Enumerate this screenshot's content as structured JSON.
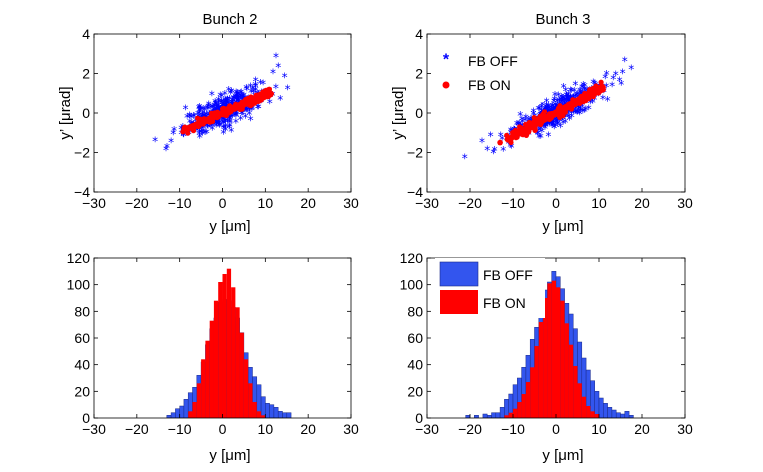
{
  "figure": {
    "x_tick_values": [
      -30,
      -20,
      -10,
      0,
      10,
      20,
      30
    ]
  },
  "chart_data": [
    {
      "type": "scatter",
      "title": "Bunch 2",
      "xlabel": "y [μm]",
      "ylabel": "y’ [μrad]",
      "xlim": [
        -30,
        30
      ],
      "ylim": [
        -4,
        4
      ],
      "xticks": [
        "−30",
        "−20",
        "−10",
        "0",
        "10",
        "20",
        "30"
      ],
      "yticks": [
        "−4",
        "−2",
        "0",
        "2",
        "4"
      ],
      "series": [
        {
          "name": "FB OFF",
          "color": "#0000ff",
          "marker": "asterisk",
          "cloud": {
            "x_center": 0,
            "x_sd": 4.5,
            "slope": 0.1,
            "y_sd": 0.38,
            "count": 400
          },
          "points": [
            [
              -13.2,
              -1.9
            ],
            [
              -12.0,
              -1.5
            ],
            [
              14.5,
              1.8
            ],
            [
              15.2,
              1.2
            ],
            [
              12.5,
              2.8
            ],
            [
              13.0,
              2.3
            ],
            [
              -11.5,
              -1.1
            ],
            [
              11.8,
              2.0
            ]
          ]
        },
        {
          "name": "FB ON",
          "color": "#ff0000",
          "marker": "dot",
          "line": {
            "x_from": -9.5,
            "x_to": 11.5,
            "slope": 0.093,
            "width_units": 0.45
          }
        }
      ]
    },
    {
      "type": "scatter",
      "title": "Bunch 3",
      "xlabel": "y [μm]",
      "ylabel": "y’ [μrad]",
      "xlim": [
        -30,
        30
      ],
      "ylim": [
        -4,
        4
      ],
      "xticks": [
        "−30",
        "−20",
        "−10",
        "0",
        "10",
        "20",
        "30"
      ],
      "yticks": [
        "−4",
        "−2",
        "0",
        "2",
        "4"
      ],
      "legend": {
        "position": "top-left",
        "entries": [
          "FB OFF",
          "FB ON"
        ]
      },
      "series": [
        {
          "name": "FB OFF",
          "color": "#0000ff",
          "marker": "asterisk",
          "cloud": {
            "x_center": 0,
            "x_sd": 5.0,
            "slope": 0.11,
            "y_sd": 0.35,
            "count": 420
          },
          "points": [
            [
              -21.2,
              -2.3
            ],
            [
              -17.2,
              -1.5
            ],
            [
              -16.0,
              -1.9
            ],
            [
              15.5,
              2.0
            ],
            [
              17.5,
              2.2
            ],
            [
              16.0,
              2.6
            ],
            [
              14.8,
              1.6
            ]
          ]
        },
        {
          "name": "FB ON",
          "color": "#ff0000",
          "marker": "dot",
          "line": {
            "x_from": -11.5,
            "x_to": 11.0,
            "slope": 0.118,
            "width_units": 0.5
          },
          "points": [
            [
              -13.0,
              -1.5
            ]
          ]
        }
      ]
    },
    {
      "type": "bar",
      "subtype": "histogram",
      "xlabel": "y [μm]",
      "xlim": [
        -30,
        30
      ],
      "ylim": [
        0,
        120
      ],
      "xticks": [
        "−30",
        "−20",
        "−10",
        "0",
        "10",
        "20",
        "30"
      ],
      "yticks": [
        "0",
        "20",
        "40",
        "60",
        "80",
        "100",
        "120"
      ],
      "bin_width": 1,
      "bin_start": -13,
      "series": [
        {
          "name": "FB OFF",
          "color": "#3355ee",
          "values": [
            2,
            4,
            7,
            9,
            14,
            19,
            23,
            32,
            42,
            55,
            67,
            75,
            87,
            89,
            88,
            83,
            75,
            64,
            49,
            38,
            31,
            25,
            16,
            11,
            10,
            8,
            5,
            4,
            4
          ]
        },
        {
          "name": "FB ON",
          "color": "#ff0000",
          "bin_start": -8,
          "values": [
            5,
            12,
            26,
            44,
            58,
            73,
            88,
            102,
            108,
            112,
            98,
            83,
            64,
            44,
            26,
            12,
            5,
            2
          ]
        }
      ]
    },
    {
      "type": "bar",
      "subtype": "histogram",
      "xlabel": "y [μm]",
      "xlim": [
        -30,
        30
      ],
      "ylim": [
        0,
        120
      ],
      "xticks": [
        "−30",
        "−20",
        "−10",
        "0",
        "10",
        "20",
        "30"
      ],
      "yticks": [
        "0",
        "20",
        "40",
        "60",
        "80",
        "100",
        "120"
      ],
      "legend": {
        "position": "top-left",
        "entries": [
          "FB OFF",
          "FB ON"
        ]
      },
      "bin_width": 1,
      "bin_start": -21,
      "series": [
        {
          "name": "FB OFF",
          "color": "#3355ee",
          "values": [
            2,
            0,
            2,
            0,
            3,
            2,
            4,
            4,
            8,
            14,
            18,
            25,
            30,
            38,
            47,
            59,
            68,
            81,
            96,
            102,
            110,
            106,
            97,
            86,
            78,
            67,
            57,
            45,
            36,
            28,
            20,
            15,
            11,
            8,
            6,
            4,
            3,
            5,
            2
          ]
        },
        {
          "name": "FB ON",
          "color": "#ff0000",
          "bin_start": -12,
          "values": [
            2,
            4,
            7,
            12,
            18,
            27,
            38,
            54,
            72,
            90,
            101,
            103,
            98,
            88,
            71,
            55,
            39,
            26,
            16,
            9,
            5,
            3
          ]
        }
      ]
    }
  ]
}
